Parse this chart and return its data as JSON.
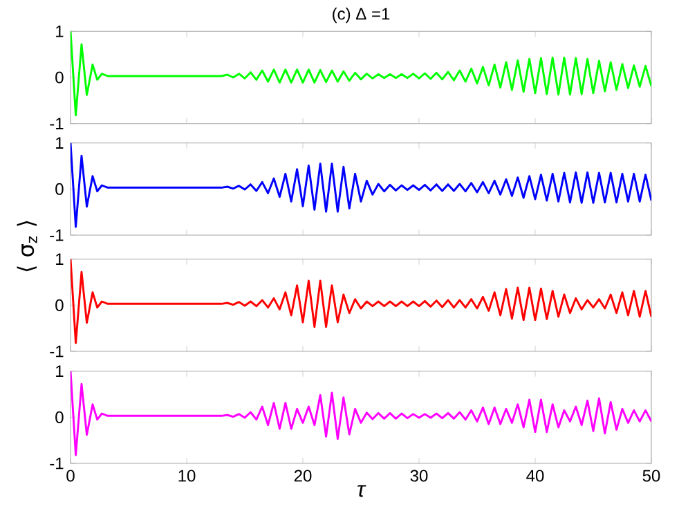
{
  "chart_data": [
    {
      "type": "line",
      "title": "(c)     Δ =1",
      "xlim": [
        0,
        50
      ],
      "xticks": [
        0,
        10,
        20,
        30,
        40,
        50
      ],
      "ylim": [
        -1,
        1
      ],
      "yticks": [
        -1,
        0,
        1
      ],
      "tick_labels": "y",
      "x": [
        0,
        0.45,
        0.95,
        1.4,
        1.9,
        2.3,
        2.7,
        3.2,
        8,
        13,
        13.5,
        14,
        14.5,
        15,
        15.5,
        16,
        16.5,
        17,
        17.5,
        18,
        18.5,
        19,
        19.5,
        20,
        20.5,
        21,
        21.5,
        22,
        22.5,
        23,
        23.5,
        24,
        24.5,
        25,
        25.5,
        26,
        26.5,
        27,
        27.5,
        28,
        28.5,
        29,
        29.5,
        30,
        30.5,
        31,
        31.5,
        32,
        32.5,
        33,
        33.5,
        34,
        34.5,
        35,
        35.5,
        36,
        36.5,
        37,
        37.5,
        38,
        38.5,
        39,
        39.5,
        40,
        40.5,
        41,
        41.5,
        42,
        42.5,
        43,
        43.5,
        44,
        44.5,
        45,
        45.5,
        46,
        46.5,
        47,
        47.5,
        48,
        48.5,
        49,
        49.5,
        50
      ],
      "series": [
        {
          "color": "#00ff00",
          "values": [
            1,
            -0.82,
            0.72,
            -0.38,
            0.28,
            -0.05,
            0.08,
            0.03,
            0.03,
            0.03,
            0.06,
            0,
            0.08,
            -0.02,
            0.11,
            -0.05,
            0.15,
            -0.09,
            0.17,
            -0.11,
            0.17,
            -0.11,
            0.17,
            -0.11,
            0.17,
            -0.11,
            0.16,
            -0.1,
            0.15,
            -0.09,
            0.13,
            -0.07,
            0.1,
            -0.04,
            0.08,
            -0.02,
            0.07,
            -0.01,
            0.07,
            -0.01,
            0.07,
            -0.01,
            0.08,
            -0.02,
            0.09,
            -0.03,
            0.1,
            -0.04,
            0.12,
            -0.06,
            0.15,
            -0.09,
            0.19,
            -0.13,
            0.23,
            -0.17,
            0.28,
            -0.22,
            0.33,
            -0.27,
            0.37,
            -0.31,
            0.4,
            -0.34,
            0.42,
            -0.36,
            0.43,
            -0.37,
            0.43,
            -0.37,
            0.42,
            -0.36,
            0.4,
            -0.34,
            0.36,
            -0.3,
            0.33,
            -0.27,
            0.29,
            -0.23,
            0.26,
            -0.2,
            0.25,
            -0.19
          ]
        }
      ]
    },
    {
      "type": "line",
      "ylabel": "⟨ σ$_{z}$ ⟩",
      "xlim": [
        0,
        50
      ],
      "xticks": [
        0,
        10,
        20,
        30,
        40,
        50
      ],
      "ylim": [
        -1,
        1
      ],
      "yticks": [
        -1,
        0,
        1
      ],
      "tick_labels": "y",
      "x": [
        0,
        0.45,
        0.95,
        1.4,
        1.9,
        2.3,
        2.7,
        3.2,
        8,
        13,
        13.5,
        14,
        14.5,
        15,
        15.5,
        16,
        16.5,
        17,
        17.5,
        18,
        18.5,
        19,
        19.5,
        20,
        20.5,
        21,
        21.5,
        22,
        22.5,
        23,
        23.5,
        24,
        24.5,
        25,
        25.5,
        26,
        26.5,
        27,
        27.5,
        28,
        28.5,
        29,
        29.5,
        30,
        30.5,
        31,
        31.5,
        32,
        32.5,
        33,
        33.5,
        34,
        34.5,
        35,
        35.5,
        36,
        36.5,
        37,
        37.5,
        38,
        38.5,
        39,
        39.5,
        40,
        40.5,
        41,
        41.5,
        42,
        42.5,
        43,
        43.5,
        44,
        44.5,
        45,
        45.5,
        46,
        46.5,
        47,
        47.5,
        48,
        48.5,
        49,
        49.5,
        50
      ],
      "series": [
        {
          "color": "#0000ff",
          "values": [
            1,
            -0.82,
            0.72,
            -0.38,
            0.28,
            -0.05,
            0.08,
            0.03,
            0.03,
            0.03,
            0.05,
            0.01,
            0.07,
            -0.01,
            0.1,
            -0.04,
            0.15,
            -0.09,
            0.23,
            -0.17,
            0.33,
            -0.27,
            0.43,
            -0.37,
            0.51,
            -0.45,
            0.55,
            -0.49,
            0.55,
            -0.49,
            0.48,
            -0.42,
            0.33,
            -0.27,
            0.18,
            -0.12,
            0.11,
            -0.05,
            0.09,
            -0.03,
            0.08,
            -0.02,
            0.08,
            -0.02,
            0.09,
            -0.03,
            0.1,
            -0.04,
            0.1,
            -0.04,
            0.11,
            -0.05,
            0.13,
            -0.07,
            0.15,
            -0.09,
            0.18,
            -0.12,
            0.21,
            -0.15,
            0.25,
            -0.19,
            0.28,
            -0.22,
            0.31,
            -0.25,
            0.33,
            -0.27,
            0.35,
            -0.29,
            0.36,
            -0.3,
            0.36,
            -0.3,
            0.35,
            -0.29,
            0.35,
            -0.29,
            0.33,
            -0.27,
            0.33,
            -0.27,
            0.31,
            -0.25
          ]
        }
      ]
    },
    {
      "type": "line",
      "xlim": [
        0,
        50
      ],
      "xticks": [
        0,
        10,
        20,
        30,
        40,
        50
      ],
      "ylim": [
        -1,
        1
      ],
      "yticks": [
        -1,
        0,
        1
      ],
      "tick_labels": "y",
      "x": [
        0,
        0.45,
        0.95,
        1.4,
        1.9,
        2.3,
        2.7,
        3.2,
        8,
        13,
        13.5,
        14,
        14.5,
        15,
        15.5,
        16,
        16.5,
        17,
        17.5,
        18,
        18.5,
        19,
        19.5,
        20,
        20.5,
        21,
        21.5,
        22,
        22.5,
        23,
        23.5,
        24,
        24.5,
        25,
        25.5,
        26,
        26.5,
        27,
        27.5,
        28,
        28.5,
        29,
        29.5,
        30,
        30.5,
        31,
        31.5,
        32,
        32.5,
        33,
        33.5,
        34,
        34.5,
        35,
        35.5,
        36,
        36.5,
        37,
        37.5,
        38,
        38.5,
        39,
        39.5,
        40,
        40.5,
        41,
        41.5,
        42,
        42.5,
        43,
        43.5,
        44,
        44.5,
        45,
        45.5,
        46,
        46.5,
        47,
        47.5,
        48,
        48.5,
        49,
        49.5,
        50
      ],
      "series": [
        {
          "color": "#ff0000",
          "values": [
            1,
            -0.82,
            0.72,
            -0.38,
            0.28,
            -0.05,
            0.08,
            0.03,
            0.03,
            0.03,
            0.05,
            0.01,
            0.07,
            -0.01,
            0.08,
            -0.02,
            0.11,
            -0.05,
            0.15,
            -0.09,
            0.28,
            -0.22,
            0.43,
            -0.37,
            0.53,
            -0.47,
            0.53,
            -0.47,
            0.43,
            -0.37,
            0.23,
            -0.17,
            0.13,
            -0.07,
            0.08,
            -0.02,
            0.08,
            -0.02,
            0.08,
            -0.02,
            0.08,
            -0.02,
            0.08,
            -0.02,
            0.09,
            -0.03,
            0.1,
            -0.04,
            0.11,
            -0.05,
            0.11,
            -0.05,
            0.13,
            -0.07,
            0.18,
            -0.12,
            0.28,
            -0.22,
            0.35,
            -0.29,
            0.38,
            -0.32,
            0.38,
            -0.32,
            0.36,
            -0.3,
            0.31,
            -0.25,
            0.23,
            -0.17,
            0.15,
            -0.09,
            0.11,
            -0.05,
            0.13,
            -0.07,
            0.23,
            -0.17,
            0.28,
            -0.22,
            0.31,
            -0.25,
            0.31,
            -0.25
          ]
        }
      ]
    },
    {
      "type": "line",
      "xlabel": "τ",
      "xlim": [
        0,
        50
      ],
      "xticks": [
        0,
        10,
        20,
        30,
        40,
        50
      ],
      "ylim": [
        -1,
        1
      ],
      "yticks": [
        -1,
        0,
        1
      ],
      "x": [
        0,
        0.45,
        0.95,
        1.4,
        1.9,
        2.3,
        2.7,
        3.2,
        8,
        13,
        13.5,
        14,
        14.5,
        15,
        15.5,
        16,
        16.5,
        17,
        17.5,
        18,
        18.5,
        19,
        19.5,
        20,
        20.5,
        21,
        21.5,
        22,
        22.5,
        23,
        23.5,
        24,
        24.5,
        25,
        25.5,
        26,
        26.5,
        27,
        27.5,
        28,
        28.5,
        29,
        29.5,
        30,
        30.5,
        31,
        31.5,
        32,
        32.5,
        33,
        33.5,
        34,
        34.5,
        35,
        35.5,
        36,
        36.5,
        37,
        37.5,
        38,
        38.5,
        39,
        39.5,
        40,
        40.5,
        41,
        41.5,
        42,
        42.5,
        43,
        43.5,
        44,
        44.5,
        45,
        45.5,
        46,
        46.5,
        47,
        47.5,
        48,
        48.5,
        49,
        49.5,
        50
      ],
      "series": [
        {
          "color": "#ff00ff",
          "values": [
            1,
            -0.82,
            0.72,
            -0.38,
            0.28,
            -0.05,
            0.08,
            0.03,
            0.03,
            0.03,
            0.05,
            0.01,
            0.07,
            -0.01,
            0.11,
            -0.05,
            0.23,
            -0.17,
            0.31,
            -0.25,
            0.31,
            -0.25,
            0.18,
            -0.12,
            0.23,
            -0.17,
            0.48,
            -0.42,
            0.53,
            -0.47,
            0.43,
            -0.37,
            0.18,
            -0.12,
            0.1,
            -0.04,
            0.09,
            -0.03,
            0.09,
            -0.03,
            0.08,
            -0.02,
            0.07,
            -0.01,
            0.07,
            -0.01,
            0.08,
            -0.02,
            0.09,
            -0.03,
            0.11,
            -0.05,
            0.15,
            -0.09,
            0.21,
            -0.15,
            0.21,
            -0.15,
            0.18,
            -0.12,
            0.28,
            -0.22,
            0.38,
            -0.32,
            0.38,
            -0.32,
            0.28,
            -0.22,
            0.15,
            -0.09,
            0.23,
            -0.17,
            0.36,
            -0.3,
            0.41,
            -0.35,
            0.33,
            -0.27,
            0.18,
            -0.12,
            0.15,
            -0.09,
            0.15,
            -0.09
          ]
        }
      ]
    }
  ]
}
